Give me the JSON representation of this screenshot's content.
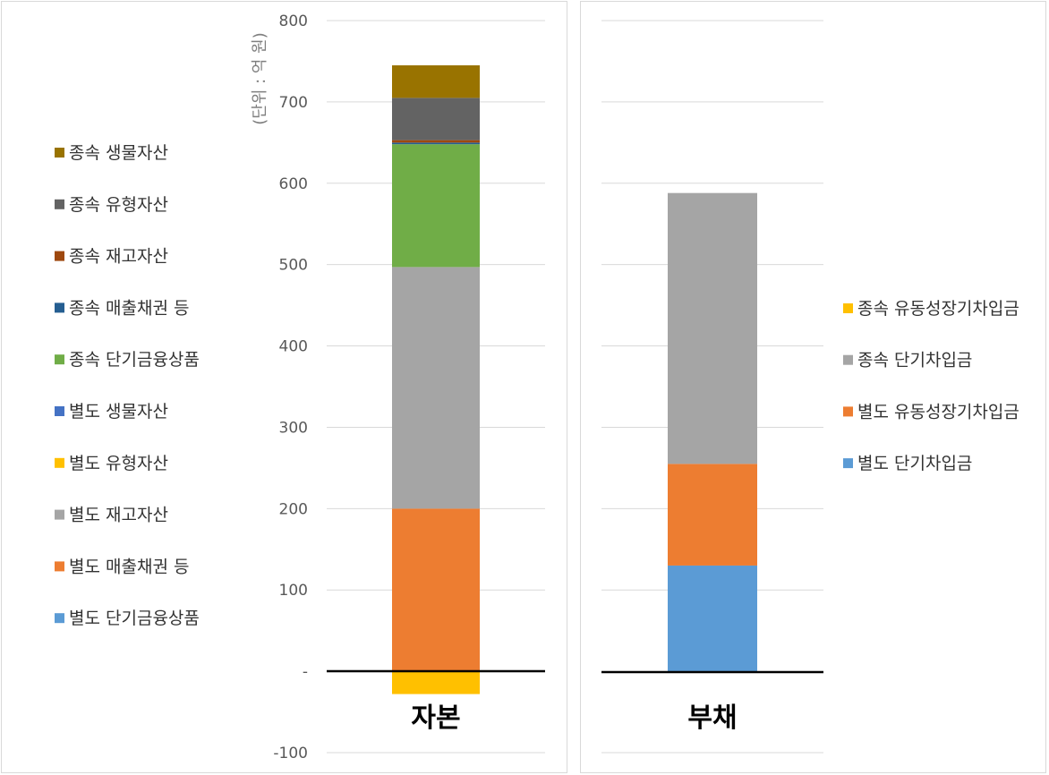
{
  "chart_data": [
    {
      "type": "bar",
      "stacked": true,
      "category": "자본",
      "unit_label": "(단위 : 억 원)",
      "ylim": [
        -100,
        800
      ],
      "yticks": [
        -100,
        0,
        100,
        200,
        300,
        400,
        500,
        600,
        700,
        800
      ],
      "ytick_labels": [
        "-100",
        "-",
        "100",
        "200",
        "300",
        "400",
        "500",
        "600",
        "700",
        "800"
      ],
      "grid": true,
      "legend_position": "left",
      "series": [
        {
          "name": "별도 단기금융상품",
          "value": 0,
          "color": "#5B9BD5"
        },
        {
          "name": "별도 매출채권 등",
          "value": 200,
          "color": "#ED7D31"
        },
        {
          "name": "별도 재고자산",
          "value": 297,
          "color": "#A5A5A5"
        },
        {
          "name": "별도 유형자산",
          "value": -28,
          "color": "#FFC000"
        },
        {
          "name": "별도 생물자산",
          "value": 0,
          "color": "#4472C4"
        },
        {
          "name": "종속 단기금융상품",
          "value": 151,
          "color": "#70AD47"
        },
        {
          "name": "종속 매출채권 등",
          "value": 2,
          "color": "#255E91"
        },
        {
          "name": "종속 재고자산",
          "value": 3,
          "color": "#9E480E"
        },
        {
          "name": "종속 유형자산",
          "value": 52,
          "color": "#636363"
        },
        {
          "name": "종속 생물자산",
          "value": 40,
          "color": "#997300"
        }
      ]
    },
    {
      "type": "bar",
      "stacked": true,
      "category": "부채",
      "ylim": [
        -100,
        800
      ],
      "grid": true,
      "legend_position": "right",
      "series": [
        {
          "name": "별도 단기차입금",
          "value": 130,
          "color": "#5B9BD5"
        },
        {
          "name": "별도 유동성장기차입금",
          "value": 125,
          "color": "#ED7D31"
        },
        {
          "name": "종속 단기차입금",
          "value": 333,
          "color": "#A5A5A5"
        },
        {
          "name": "종속 유동성장기차입금",
          "value": 0,
          "color": "#FFC000"
        }
      ]
    }
  ]
}
